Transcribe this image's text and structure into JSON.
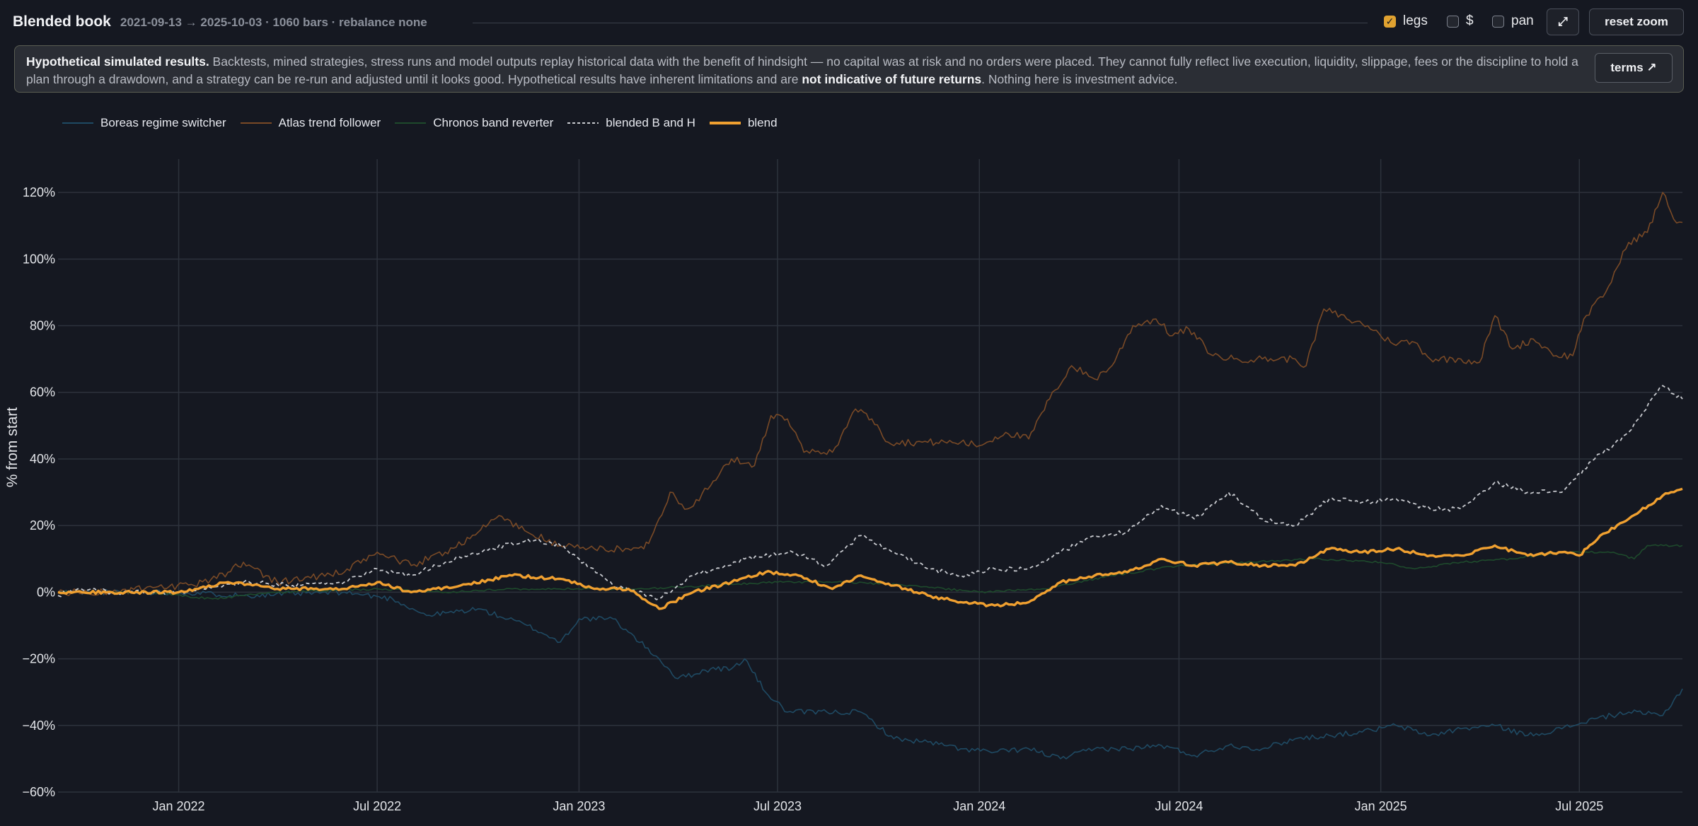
{
  "header": {
    "title": "Blended book",
    "subtitle": "2021-09-13 → 2025-10-03 · 1060 bars · rebalance none",
    "controls": {
      "legs_label": "legs",
      "legs_checked": true,
      "dollar_label": "$",
      "dollar_checked": false,
      "pan_label": "pan",
      "pan_checked": false,
      "expand_glyph": "⤢",
      "reset_zoom_label": "reset zoom"
    }
  },
  "disclaimer": {
    "lead": "Hypothetical simulated results.",
    "body1": " Backtests, mined strategies, stress runs and model outputs replay historical data with the benefit of hindsight — no capital was at risk and no orders were placed. They cannot fully reflect live execution, liquidity, slippage, fees or the discipline to hold a plan through a drawdown, and a strategy can be re-run and adjusted until it looks good. Hypothetical results have inherent limitations and are ",
    "emphasis": "not indicative of future returns",
    "body2": ". Nothing here is investment advice.",
    "terms_label": "terms ↗"
  },
  "colors": {
    "boreas": "#1f4a63",
    "atlas": "#7a4a26",
    "chronos": "#1e4a2c",
    "blended_bh": "#c9cbd0",
    "blend": "#f0a030",
    "grid": "#2d323c",
    "background": "#151821"
  },
  "chart_data": {
    "type": "line",
    "ylabel": "% from start",
    "ylim": [
      -60,
      130
    ],
    "y_ticks": [
      -60,
      -40,
      -20,
      0,
      20,
      40,
      60,
      80,
      100,
      120
    ],
    "y_tick_labels": [
      "−60%",
      "−40%",
      "−20%",
      "0%",
      "20%",
      "40%",
      "60%",
      "80%",
      "100%",
      "120%"
    ],
    "x_range": [
      "2021-09-13",
      "2025-10-03"
    ],
    "x_ticks": [
      "2022-01-01",
      "2022-07-01",
      "2023-01-01",
      "2023-07-01",
      "2024-01-01",
      "2024-07-01",
      "2025-01-01",
      "2025-07-01"
    ],
    "x_tick_labels": [
      "Jan 2022",
      "Jul 2022",
      "Jan 2023",
      "Jul 2023",
      "Jan 2024",
      "Jul 2024",
      "Jan 2025",
      "Jul 2025"
    ],
    "grid": true,
    "legend_position": "top-left",
    "series": [
      {
        "name": "Boreas regime switcher",
        "key": "boreas",
        "style": "solid",
        "points": [
          [
            "2021-09-13",
            0
          ],
          [
            "2021-11-01",
            0
          ],
          [
            "2022-01-01",
            0
          ],
          [
            "2022-03-01",
            -1
          ],
          [
            "2022-06-01",
            0
          ],
          [
            "2022-07-15",
            -2
          ],
          [
            "2022-08-15",
            -7
          ],
          [
            "2022-10-01",
            -5
          ],
          [
            "2022-11-15",
            -10
          ],
          [
            "2022-12-15",
            -15
          ],
          [
            "2023-01-01",
            -8
          ],
          [
            "2023-02-01",
            -8
          ],
          [
            "2023-02-15",
            -12
          ],
          [
            "2023-03-15",
            -20
          ],
          [
            "2023-04-01",
            -26
          ],
          [
            "2023-05-01",
            -23
          ],
          [
            "2023-05-20",
            -23
          ],
          [
            "2023-06-01",
            -20
          ],
          [
            "2023-06-20",
            -30
          ],
          [
            "2023-07-10",
            -36
          ],
          [
            "2023-08-15",
            -36
          ],
          [
            "2023-09-15",
            -36
          ],
          [
            "2023-10-15",
            -44
          ],
          [
            "2023-11-15",
            -45
          ],
          [
            "2023-12-15",
            -47
          ],
          [
            "2024-01-15",
            -48
          ],
          [
            "2024-02-15",
            -47
          ],
          [
            "2024-03-15",
            -50
          ],
          [
            "2024-04-15",
            -47
          ],
          [
            "2024-05-15",
            -47
          ],
          [
            "2024-06-15",
            -46
          ],
          [
            "2024-07-15",
            -49
          ],
          [
            "2024-08-15",
            -46
          ],
          [
            "2024-09-15",
            -47
          ],
          [
            "2024-10-15",
            -44
          ],
          [
            "2024-11-15",
            -43
          ],
          [
            "2024-12-15",
            -42
          ],
          [
            "2025-01-15",
            -40
          ],
          [
            "2025-02-15",
            -43
          ],
          [
            "2025-03-15",
            -41
          ],
          [
            "2025-04-15",
            -40
          ],
          [
            "2025-05-15",
            -43
          ],
          [
            "2025-06-15",
            -41
          ],
          [
            "2025-07-15",
            -38
          ],
          [
            "2025-08-15",
            -36
          ],
          [
            "2025-09-15",
            -37
          ],
          [
            "2025-10-03",
            -29
          ]
        ]
      },
      {
        "name": "Atlas trend follower",
        "key": "atlas",
        "style": "solid",
        "points": [
          [
            "2021-09-13",
            0
          ],
          [
            "2021-11-01",
            0
          ],
          [
            "2021-12-01",
            1
          ],
          [
            "2022-01-15",
            2
          ],
          [
            "2022-02-15",
            6
          ],
          [
            "2022-03-01",
            9
          ],
          [
            "2022-04-01",
            3
          ],
          [
            "2022-06-01",
            6
          ],
          [
            "2022-07-01",
            12
          ],
          [
            "2022-08-01",
            8
          ],
          [
            "2022-09-01",
            12
          ],
          [
            "2022-10-01",
            18
          ],
          [
            "2022-10-20",
            23
          ],
          [
            "2022-11-15",
            18
          ],
          [
            "2022-12-15",
            14
          ],
          [
            "2023-01-15",
            13
          ],
          [
            "2023-02-15",
            13
          ],
          [
            "2023-03-01",
            13
          ],
          [
            "2023-03-10",
            18
          ],
          [
            "2023-03-25",
            30
          ],
          [
            "2023-04-10",
            25
          ],
          [
            "2023-05-01",
            32
          ],
          [
            "2023-05-20",
            40
          ],
          [
            "2023-06-10",
            38
          ],
          [
            "2023-06-25",
            53
          ],
          [
            "2023-07-10",
            52
          ],
          [
            "2023-07-25",
            42
          ],
          [
            "2023-08-20",
            42
          ],
          [
            "2023-09-10",
            55
          ],
          [
            "2023-09-25",
            52
          ],
          [
            "2023-10-10",
            45
          ],
          [
            "2023-11-15",
            45
          ],
          [
            "2023-12-15",
            45
          ],
          [
            "2024-01-01",
            44
          ],
          [
            "2024-01-25",
            48
          ],
          [
            "2024-02-15",
            46
          ],
          [
            "2024-03-05",
            58
          ],
          [
            "2024-03-25",
            68
          ],
          [
            "2024-04-15",
            64
          ],
          [
            "2024-05-01",
            68
          ],
          [
            "2024-05-20",
            80
          ],
          [
            "2024-06-10",
            82
          ],
          [
            "2024-06-25",
            77
          ],
          [
            "2024-07-10",
            79
          ],
          [
            "2024-08-01",
            71
          ],
          [
            "2024-08-20",
            70
          ],
          [
            "2024-09-15",
            70
          ],
          [
            "2024-10-15",
            70
          ],
          [
            "2024-10-25",
            68
          ],
          [
            "2024-11-10",
            85
          ],
          [
            "2024-12-01",
            82
          ],
          [
            "2024-12-20",
            80
          ],
          [
            "2025-01-10",
            75
          ],
          [
            "2025-02-01",
            75
          ],
          [
            "2025-02-15",
            70
          ],
          [
            "2025-03-15",
            70
          ],
          [
            "2025-04-01",
            69
          ],
          [
            "2025-04-15",
            83
          ],
          [
            "2025-05-01",
            73
          ],
          [
            "2025-05-20",
            76
          ],
          [
            "2025-06-10",
            71
          ],
          [
            "2025-06-25",
            71
          ],
          [
            "2025-07-05",
            82
          ],
          [
            "2025-07-25",
            90
          ],
          [
            "2025-08-15",
            105
          ],
          [
            "2025-09-01",
            108
          ],
          [
            "2025-09-15",
            120
          ],
          [
            "2025-09-25",
            112
          ],
          [
            "2025-10-03",
            111
          ]
        ]
      },
      {
        "name": "Chronos band reverter",
        "key": "chronos",
        "style": "solid",
        "points": [
          [
            "2021-09-13",
            0
          ],
          [
            "2021-12-01",
            0
          ],
          [
            "2022-02-01",
            -2
          ],
          [
            "2022-04-01",
            0
          ],
          [
            "2022-07-01",
            1
          ],
          [
            "2022-09-01",
            0
          ],
          [
            "2022-11-01",
            1
          ],
          [
            "2023-01-01",
            1
          ],
          [
            "2023-03-01",
            1
          ],
          [
            "2023-05-01",
            2
          ],
          [
            "2023-07-01",
            3
          ],
          [
            "2023-09-01",
            3
          ],
          [
            "2023-11-01",
            2
          ],
          [
            "2024-01-01",
            0
          ],
          [
            "2024-03-01",
            1
          ],
          [
            "2024-05-01",
            5
          ],
          [
            "2024-07-01",
            8
          ],
          [
            "2024-09-01",
            9
          ],
          [
            "2024-11-01",
            10
          ],
          [
            "2025-01-01",
            9
          ],
          [
            "2025-02-01",
            7
          ],
          [
            "2025-03-15",
            9
          ],
          [
            "2025-05-01",
            10
          ],
          [
            "2025-06-15",
            12
          ],
          [
            "2025-08-01",
            12
          ],
          [
            "2025-08-20",
            10
          ],
          [
            "2025-09-01",
            14
          ],
          [
            "2025-10-03",
            14
          ]
        ]
      },
      {
        "name": "blended B and H",
        "key": "blended_bh",
        "style": "dashed",
        "points": [
          [
            "2021-09-13",
            -1
          ],
          [
            "2021-10-01",
            1
          ],
          [
            "2021-11-01",
            0
          ],
          [
            "2022-01-01",
            0
          ],
          [
            "2022-03-01",
            3
          ],
          [
            "2022-04-15",
            2
          ],
          [
            "2022-06-01",
            3
          ],
          [
            "2022-07-01",
            7
          ],
          [
            "2022-08-01",
            5
          ],
          [
            "2022-09-01",
            9
          ],
          [
            "2022-10-15",
            13
          ],
          [
            "2022-11-15",
            16
          ],
          [
            "2022-12-15",
            14
          ],
          [
            "2023-01-01",
            10
          ],
          [
            "2023-02-01",
            2
          ],
          [
            "2023-03-15",
            -2
          ],
          [
            "2023-04-15",
            5
          ],
          [
            "2023-06-01",
            10
          ],
          [
            "2023-07-15",
            12
          ],
          [
            "2023-08-15",
            8
          ],
          [
            "2023-09-15",
            17
          ],
          [
            "2023-10-15",
            12
          ],
          [
            "2023-11-15",
            7
          ],
          [
            "2023-12-15",
            5
          ],
          [
            "2024-01-15",
            7
          ],
          [
            "2024-02-15",
            7
          ],
          [
            "2024-03-15",
            12
          ],
          [
            "2024-04-15",
            17
          ],
          [
            "2024-05-15",
            18
          ],
          [
            "2024-06-15",
            26
          ],
          [
            "2024-07-15",
            22
          ],
          [
            "2024-08-15",
            30
          ],
          [
            "2024-09-15",
            22
          ],
          [
            "2024-10-15",
            20
          ],
          [
            "2024-11-15",
            28
          ],
          [
            "2024-12-15",
            27
          ],
          [
            "2025-01-15",
            28
          ],
          [
            "2025-02-15",
            25
          ],
          [
            "2025-03-15",
            25
          ],
          [
            "2025-04-15",
            33
          ],
          [
            "2025-05-15",
            30
          ],
          [
            "2025-06-15",
            30
          ],
          [
            "2025-07-15",
            40
          ],
          [
            "2025-08-15",
            48
          ],
          [
            "2025-09-15",
            62
          ],
          [
            "2025-10-03",
            58
          ]
        ]
      },
      {
        "name": "blend",
        "key": "blend",
        "style": "bold",
        "points": [
          [
            "2021-09-13",
            0
          ],
          [
            "2021-11-01",
            0
          ],
          [
            "2022-01-01",
            0
          ],
          [
            "2022-02-15",
            3
          ],
          [
            "2022-04-01",
            1
          ],
          [
            "2022-06-01",
            1
          ],
          [
            "2022-07-01",
            3
          ],
          [
            "2022-08-01",
            0
          ],
          [
            "2022-09-15",
            2
          ],
          [
            "2022-11-01",
            5
          ],
          [
            "2022-12-15",
            4
          ],
          [
            "2023-01-15",
            1
          ],
          [
            "2023-02-15",
            1
          ],
          [
            "2023-03-15",
            -5
          ],
          [
            "2023-04-15",
            0
          ],
          [
            "2023-05-20",
            3
          ],
          [
            "2023-06-20",
            6
          ],
          [
            "2023-07-20",
            5
          ],
          [
            "2023-08-20",
            1
          ],
          [
            "2023-09-15",
            5
          ],
          [
            "2023-10-15",
            2
          ],
          [
            "2023-11-15",
            -1
          ],
          [
            "2023-12-15",
            -3
          ],
          [
            "2024-01-15",
            -4
          ],
          [
            "2024-02-15",
            -3
          ],
          [
            "2024-03-15",
            3
          ],
          [
            "2024-04-15",
            5
          ],
          [
            "2024-05-15",
            6
          ],
          [
            "2024-06-15",
            10
          ],
          [
            "2024-07-15",
            8
          ],
          [
            "2024-08-15",
            9
          ],
          [
            "2024-09-15",
            8
          ],
          [
            "2024-10-15",
            8
          ],
          [
            "2024-11-15",
            13
          ],
          [
            "2024-12-15",
            12
          ],
          [
            "2025-01-15",
            13
          ],
          [
            "2025-02-15",
            11
          ],
          [
            "2025-03-15",
            11
          ],
          [
            "2025-04-15",
            14
          ],
          [
            "2025-05-15",
            11
          ],
          [
            "2025-06-15",
            12
          ],
          [
            "2025-07-01",
            11
          ],
          [
            "2025-07-20",
            17
          ],
          [
            "2025-08-15",
            22
          ],
          [
            "2025-09-15",
            29
          ],
          [
            "2025-10-03",
            31
          ]
        ]
      }
    ]
  }
}
